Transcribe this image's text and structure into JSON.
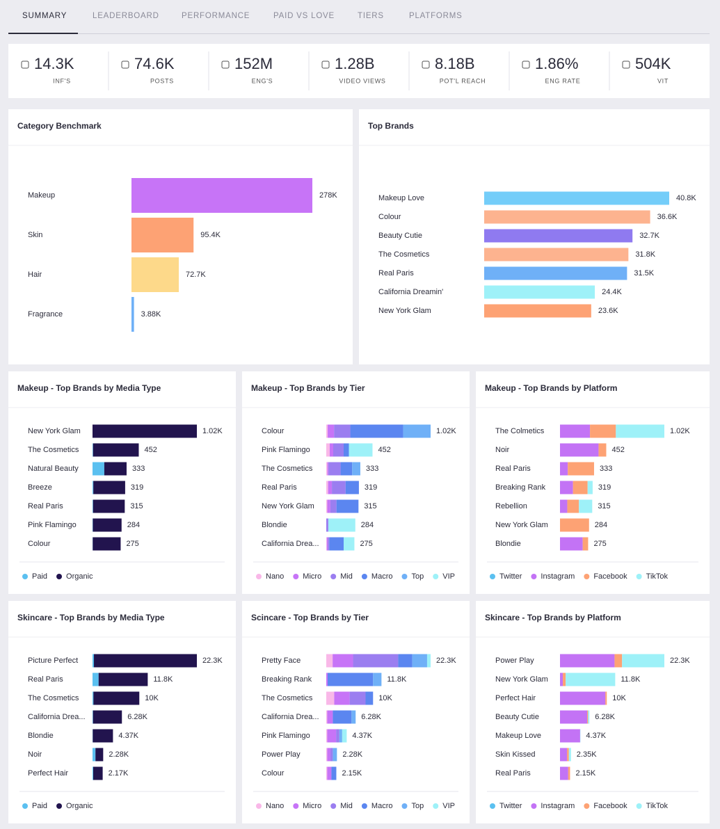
{
  "tabs": [
    "SUMMARY",
    "LEADERBOARD",
    "PERFORMANCE",
    "PAID VS LOVE",
    "TIERS",
    "PLATFORMS"
  ],
  "kpis": [
    {
      "value": "14.3K",
      "label": "INF'S"
    },
    {
      "value": "74.6K",
      "label": "POSTS"
    },
    {
      "value": "152M",
      "label": "ENG'S"
    },
    {
      "value": "1.28B",
      "label": "VIDEO VIEWS"
    },
    {
      "value": "8.18B",
      "label": "POT'L REACH"
    },
    {
      "value": "1.86%",
      "label": "ENG RATE"
    },
    {
      "value": "504K",
      "label": "VIT"
    }
  ],
  "chart_data": [
    {
      "type": "bar",
      "title": "Category Benchmark",
      "categories": [
        "Makeup",
        "Skin",
        "Hair",
        "Fragrance"
      ],
      "values": [
        278000,
        95400,
        72700,
        3880
      ],
      "value_labels": [
        "278K",
        "95.4K",
        "72.7K",
        "3.88K"
      ],
      "colors": [
        "#c774f7",
        "#fda274",
        "#fdd98a",
        "#6fb0f7"
      ],
      "xlim": [
        0,
        278000
      ]
    },
    {
      "type": "bar",
      "title": "Top Brands",
      "categories": [
        "Makeup Love",
        "Colour",
        "Beauty Cutie",
        "The Cosmetics",
        "Real Paris",
        "California Dreamin'",
        "New York Glam"
      ],
      "values": [
        40800,
        36600,
        32700,
        31800,
        31500,
        24400,
        23600
      ],
      "value_labels": [
        "40.8K",
        "36.6K",
        "32.7K",
        "31.8K",
        "31.5K",
        "24.4K",
        "23.6K"
      ],
      "colors": [
        "#74cdf9",
        "#fdb38f",
        "#8f7af0",
        "#fdb38f",
        "#6fb0f7",
        "#9ef1f8",
        "#fda274"
      ],
      "xlim": [
        0,
        40800
      ]
    },
    {
      "type": "stacked-bar",
      "title": "Makeup - Top Brands by Media Type",
      "categories": [
        "New York Glam",
        "The Cosmetics",
        "Natural Beauty",
        "Breeze",
        "Real Paris",
        "Pink Flamingo",
        "Colour"
      ],
      "series": [
        {
          "name": "Paid",
          "color": "#5bc0f0",
          "values": [
            0,
            5,
            115,
            8,
            5,
            3,
            2
          ]
        },
        {
          "name": "Organic",
          "color": "#22144e",
          "values": [
            1020,
            447,
            218,
            311,
            310,
            281,
            273
          ]
        }
      ],
      "value_labels": [
        "1.02K",
        "452",
        "333",
        "319",
        "315",
        "284",
        "275"
      ],
      "xlim": [
        0,
        1020
      ]
    },
    {
      "type": "stacked-bar",
      "title": "Makeup - Top Brands by Tier",
      "categories": [
        "Colour",
        "Pink Flamingo",
        "The Cosmetics",
        "Real Paris",
        "New York Glam",
        "Blondie",
        "California Drea..."
      ],
      "series": [
        {
          "name": "Nano",
          "color": "#f9b8e8",
          "values": [
            14,
            34,
            11,
            18,
            10,
            0,
            5
          ]
        },
        {
          "name": "Micro",
          "color": "#c774f7",
          "values": [
            62,
            34,
            11,
            37,
            30,
            0,
            10
          ]
        },
        {
          "name": "Mid",
          "color": "#9b7ef0",
          "values": [
            159,
            102,
            118,
            134,
            60,
            20,
            15
          ]
        },
        {
          "name": "Macro",
          "color": "#5b86f0",
          "values": [
            517,
            51,
            113,
            130,
            215,
            0,
            140
          ]
        },
        {
          "name": "Top",
          "color": "#6fb0f7",
          "values": [
            268,
            0,
            80,
            0,
            0,
            0,
            0
          ]
        },
        {
          "name": "VIP",
          "color": "#9ef1f8",
          "values": [
            0,
            231,
            0,
            0,
            0,
            264,
            105
          ]
        }
      ],
      "value_labels": [
        "1.02K",
        "452",
        "333",
        "319",
        "315",
        "284",
        "275"
      ],
      "xlim": [
        0,
        1020
      ]
    },
    {
      "type": "stacked-bar",
      "title": "Makeup - Top Brands by Platform",
      "categories": [
        "The Colmetics",
        "Noir",
        "Real Paris",
        "Breaking Rank",
        "Rebellion",
        "New York Glam",
        "Blondie"
      ],
      "series": [
        {
          "name": "Twitter",
          "color": "#5bc0f0",
          "values": [
            0,
            0,
            0,
            0,
            0,
            0,
            0
          ]
        },
        {
          "name": "Instagram",
          "color": "#c373f5",
          "values": [
            293,
            377,
            76,
            127,
            71,
            0,
            222
          ]
        },
        {
          "name": "Facebook",
          "color": "#fda274",
          "values": [
            253,
            75,
            257,
            143,
            114,
            284,
            53
          ]
        },
        {
          "name": "TikTok",
          "color": "#9ef1f8",
          "values": [
            474,
            0,
            0,
            49,
            130,
            0,
            0
          ]
        }
      ],
      "value_labels": [
        "1.02K",
        "452",
        "333",
        "319",
        "315",
        "284",
        "275"
      ],
      "xlim": [
        0,
        1020
      ]
    },
    {
      "type": "stacked-bar",
      "title": "Skincare - Top Brands by Media Type",
      "categories": [
        "Picture Perfect",
        "Real Paris",
        "The Cosmetics",
        "California Drea...",
        "Blondie",
        "Noir",
        "Perfect Hair"
      ],
      "series": [
        {
          "name": "Paid",
          "color": "#5bc0f0",
          "values": [
            300,
            1300,
            200,
            100,
            50,
            630,
            150
          ]
        },
        {
          "name": "Organic",
          "color": "#22144e",
          "values": [
            22000,
            10500,
            9800,
            6180,
            4320,
            1650,
            2020
          ]
        }
      ],
      "value_labels": [
        "22.3K",
        "11.8K",
        "10K",
        "6.28K",
        "4.37K",
        "2.28K",
        "2.17K"
      ],
      "xlim": [
        0,
        22300
      ]
    },
    {
      "type": "stacked-bar",
      "title": "Scincare - Top Brands by Tier",
      "categories": [
        "Pretty Face",
        "Breaking Rank",
        "The Cosmetics",
        "California Drea...",
        "Pink Flamingo",
        "Power Play",
        "Colour"
      ],
      "series": [
        {
          "name": "Nano",
          "color": "#f9b8e8",
          "values": [
            1360,
            0,
            1700,
            200,
            200,
            200,
            200
          ]
        },
        {
          "name": "Micro",
          "color": "#c774f7",
          "values": [
            4370,
            300,
            3300,
            1200,
            1900,
            700,
            900
          ]
        },
        {
          "name": "Mid",
          "color": "#9b7ef0",
          "values": [
            9640,
            0,
            3400,
            0,
            700,
            500,
            0
          ]
        },
        {
          "name": "Macro",
          "color": "#5b86f0",
          "values": [
            3010,
            9700,
            1600,
            4000,
            0,
            0,
            1050
          ]
        },
        {
          "name": "Top",
          "color": "#6fb0f7",
          "values": [
            3170,
            1800,
            0,
            880,
            600,
            880,
            0
          ]
        },
        {
          "name": "VIP",
          "color": "#9ef1f8",
          "values": [
            750,
            0,
            0,
            0,
            970,
            0,
            0
          ]
        }
      ],
      "value_labels": [
        "22.3K",
        "11.8K",
        "10K",
        "6.28K",
        "4.37K",
        "2.28K",
        "2.15K"
      ],
      "xlim": [
        0,
        22300
      ]
    },
    {
      "type": "stacked-bar",
      "title": "Skincare - Top Brands by Platform",
      "categories": [
        "Power Play",
        "New York Glam",
        "Perfect Hair",
        "Beauty Cutie",
        "Makeup Love",
        "Skin Kissed",
        "Real Paris"
      ],
      "series": [
        {
          "name": "Twitter",
          "color": "#5bc0f0",
          "values": [
            0,
            0,
            0,
            0,
            0,
            0,
            0
          ]
        },
        {
          "name": "Instagram",
          "color": "#c373f5",
          "values": [
            11660,
            600,
            9700,
            5800,
            4300,
            1500,
            1750
          ]
        },
        {
          "name": "Facebook",
          "color": "#fda274",
          "values": [
            1600,
            600,
            300,
            200,
            0,
            400,
            400
          ]
        },
        {
          "name": "TikTok",
          "color": "#9ef1f8",
          "values": [
            9040,
            10600,
            0,
            280,
            70,
            450,
            0
          ]
        }
      ],
      "value_labels": [
        "22.3K",
        "11.8K",
        "10K",
        "6.28K",
        "4.37K",
        "2.35K",
        "2.15K"
      ],
      "xlim": [
        0,
        22300
      ]
    }
  ]
}
